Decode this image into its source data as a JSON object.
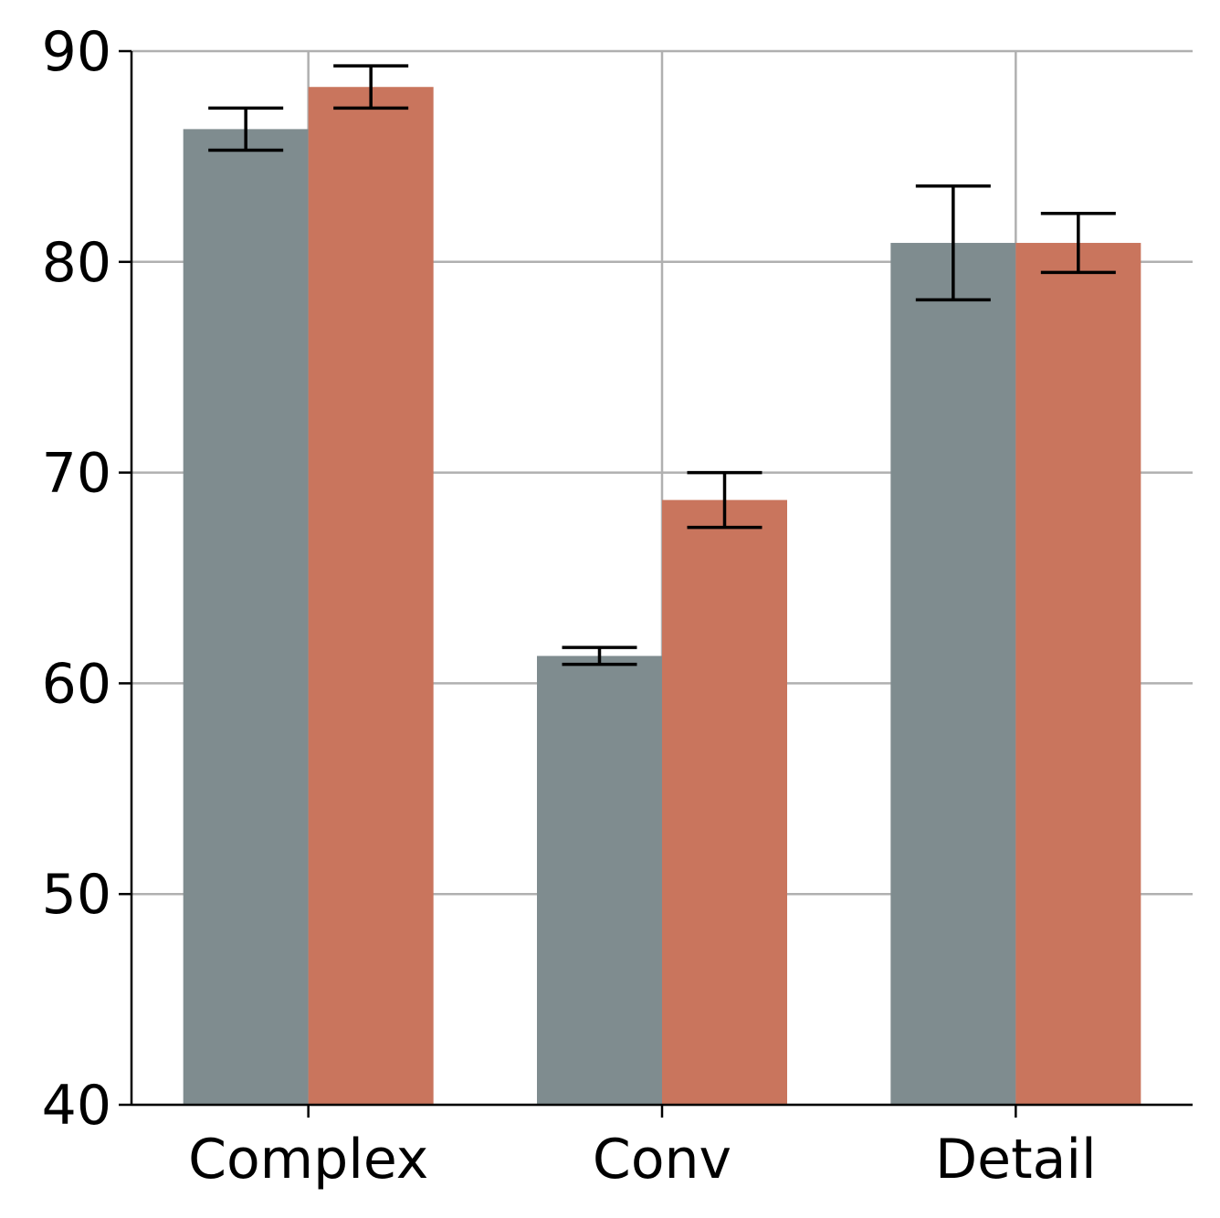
{
  "chart_data": {
    "type": "bar",
    "categories": [
      "Complex",
      "Conv",
      "Detail"
    ],
    "series": [
      {
        "color": "#7f8c8f",
        "values": [
          86.3,
          61.3,
          80.9
        ],
        "errors": [
          1.0,
          0.4,
          2.7
        ]
      },
      {
        "color": "#c9755d",
        "values": [
          88.3,
          68.7,
          80.9
        ],
        "errors": [
          1.0,
          1.3,
          1.4
        ]
      }
    ],
    "ylim": [
      40,
      90
    ],
    "yticks": [
      40,
      50,
      60,
      70,
      80,
      90
    ],
    "ytick_labels": [
      "40",
      "50",
      "60",
      "70",
      "80",
      "90"
    ],
    "title": "",
    "xlabel": "",
    "ylabel": "",
    "grid": true,
    "legend": false
  }
}
